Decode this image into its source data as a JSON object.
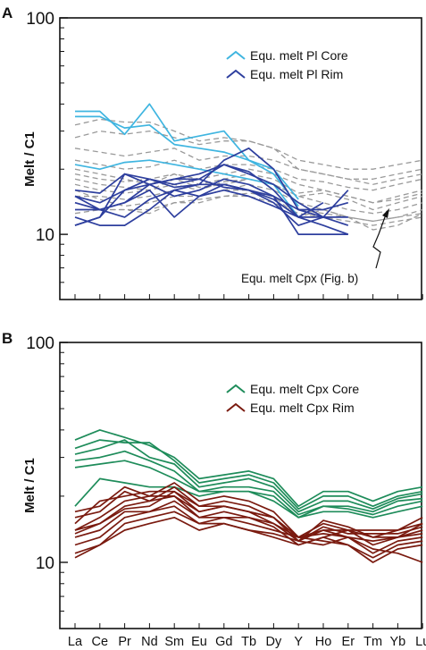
{
  "chart_data": [
    {
      "panel_label": "A",
      "type": "line",
      "ylabel": "Melt / C1",
      "yscale": "log",
      "ylim": [
        5,
        100
      ],
      "ytick_labels": [
        "10",
        "100"
      ],
      "yticks": [
        10,
        100
      ],
      "x_positions": [
        "La",
        "Ce",
        "Pr",
        "Nd",
        "Sm",
        "Eu",
        "Gd",
        "Tb",
        "Dy",
        "Y",
        "Ho",
        "Er",
        "Tm",
        "Yb",
        "Lu"
      ],
      "legend": [
        {
          "label": "Equ. melt Pl Core",
          "color": "#3fb5e0"
        },
        {
          "label": "Equ. melt Pl Rim",
          "color": "#2e3f9e"
        }
      ],
      "annotation": "Equ. melt Cpx (Fig. b)",
      "series": [
        {
          "group": "cpx",
          "color": "#9a9a9a",
          "dash": true,
          "values": [
            16,
            14.5,
            13.5,
            14,
            15,
            15,
            16,
            17,
            16,
            14,
            13,
            12,
            11.5,
            12,
            13
          ]
        },
        {
          "group": "cpx",
          "color": "#9a9a9a",
          "dash": true,
          "values": [
            18,
            17,
            16.5,
            16,
            18,
            16.5,
            17,
            18,
            17,
            15,
            14,
            13,
            12.5,
            13,
            14
          ]
        },
        {
          "group": "cpx",
          "color": "#9a9a9a",
          "dash": true,
          "values": [
            20,
            19,
            18,
            17,
            19,
            18,
            19,
            20,
            19,
            17,
            16,
            15,
            14,
            15,
            16
          ]
        },
        {
          "group": "cpx",
          "color": "#9a9a9a",
          "dash": true,
          "values": [
            22,
            21,
            20,
            20.5,
            22,
            20,
            21,
            21,
            20,
            18,
            17.5,
            16.5,
            16,
            17,
            18
          ]
        },
        {
          "group": "cpx",
          "color": "#9a9a9a",
          "dash": true,
          "values": [
            25,
            24,
            23,
            24,
            25,
            22,
            23,
            23,
            22,
            20,
            19,
            18,
            18,
            19,
            20
          ]
        },
        {
          "group": "cpx",
          "color": "#9a9a9a",
          "dash": true,
          "values": [
            28,
            30,
            29,
            30,
            28,
            26,
            27,
            27,
            25,
            22,
            21,
            20,
            20,
            21,
            22
          ]
        },
        {
          "group": "cpx",
          "color": "#9a9a9a",
          "dash": true,
          "values": [
            32,
            34,
            33,
            33,
            30,
            27,
            28,
            27,
            25,
            20,
            19,
            18,
            17,
            18,
            19
          ]
        },
        {
          "group": "cpx",
          "color": "#9a9a9a",
          "dash": true,
          "values": [
            14,
            13,
            13,
            13,
            14,
            14,
            15,
            15.5,
            15,
            13,
            12.5,
            12,
            11.5,
            12,
            12.5
          ]
        },
        {
          "group": "cpx",
          "color": "#9a9a9a",
          "dash": true,
          "values": [
            15,
            15,
            14.5,
            15,
            16,
            15,
            16,
            16,
            15,
            12,
            13,
            12,
            10.5,
            11,
            12.5
          ]
        },
        {
          "group": "cpx",
          "color": "#9a9a9a",
          "dash": true,
          "values": [
            17,
            16,
            15.5,
            16,
            17,
            16,
            17.5,
            18,
            17,
            15,
            15.5,
            14.5,
            13,
            14,
            15
          ]
        },
        {
          "group": "cpx",
          "color": "#9a9a9a",
          "dash": true,
          "values": [
            19,
            18,
            17.5,
            18,
            19,
            17,
            18,
            19,
            18,
            15.5,
            16,
            15,
            14,
            14.5,
            15.5
          ]
        },
        {
          "group": "cpx",
          "color": "#9a9a9a",
          "dash": true,
          "values": [
            12.5,
            13,
            13,
            12.5,
            14,
            14.5,
            15,
            15,
            14,
            12.5,
            12,
            11.5,
            11,
            11.5,
            12
          ]
        },
        {
          "group": "pl_core",
          "color": "#3fb5e0",
          "dash": false,
          "values": [
            37,
            37,
            29,
            40,
            27,
            null,
            30,
            22,
            19,
            13.5
          ]
        },
        {
          "group": "pl_core",
          "color": "#3fb5e0",
          "dash": false,
          "values": [
            35,
            35,
            31,
            32,
            26,
            25,
            24,
            22,
            20,
            14.5
          ]
        },
        {
          "group": "pl_core",
          "color": "#3fb5e0",
          "dash": false,
          "values": [
            21,
            20,
            21.5,
            22,
            21,
            20,
            19,
            18,
            17,
            12
          ]
        },
        {
          "group": "pl_rim",
          "color": "#2e3f9e",
          "dash": false,
          "values": [
            15,
            14,
            16,
            18,
            17,
            18,
            21,
            19.5,
            16,
            12,
            12,
            16
          ]
        },
        {
          "group": "pl_rim",
          "color": "#2e3f9e",
          "dash": false,
          "values": [
            16,
            15.5,
            19,
            18,
            16.5,
            17,
            17,
            16,
            15,
            13,
            13,
            14
          ]
        },
        {
          "group": "pl_rim",
          "color": "#2e3f9e",
          "dash": false,
          "values": [
            15,
            13,
            14,
            17,
            18,
            19,
            21,
            19,
            17,
            14,
            12,
            12
          ]
        },
        {
          "group": "pl_rim",
          "color": "#2e3f9e",
          "dash": false,
          "values": [
            14,
            13,
            12,
            14.5,
            16,
            15,
            17,
            16,
            14,
            11,
            12,
            11
          ]
        },
        {
          "group": "pl_rim",
          "color": "#2e3f9e",
          "dash": false,
          "values": [
            13,
            13,
            14,
            16,
            12,
            15,
            16,
            15,
            13.5,
            12,
            11,
            10
          ]
        },
        {
          "group": "pl_rim",
          "color": "#2e3f9e",
          "dash": false,
          "values": [
            12,
            11,
            11,
            13,
            16,
            17,
            22,
            25,
            20,
            13,
            12
          ]
        },
        {
          "group": "pl_rim",
          "color": "#2e3f9e",
          "dash": false,
          "values": [
            11,
            12,
            16,
            17,
            15,
            16,
            18,
            17,
            15,
            10,
            10,
            10
          ]
        },
        {
          "group": "pl_rim",
          "color": "#2e3f9e",
          "dash": false,
          "values": [
            11,
            12,
            19,
            17,
            18,
            18,
            16.5,
            16,
            14.5,
            12,
            14
          ]
        }
      ]
    },
    {
      "panel_label": "B",
      "type": "line",
      "ylabel": "Melt / C1",
      "yscale": "log",
      "ylim": [
        5,
        100
      ],
      "ytick_labels": [
        "10",
        "100"
      ],
      "yticks": [
        10,
        100
      ],
      "categories": [
        "La",
        "Ce",
        "Pr",
        "Nd",
        "Sm",
        "Eu",
        "Gd",
        "Tb",
        "Dy",
        "Y",
        "Ho",
        "Er",
        "Tm",
        "Yb",
        "Lu"
      ],
      "legend": [
        {
          "label": "Equ. melt Cpx Core",
          "color": "#1e8c5a"
        },
        {
          "label": "Equ. melt Cpx Rim",
          "color": "#7a1a0f"
        }
      ],
      "series": [
        {
          "group": "cpx_core",
          "color": "#1e8c5a",
          "values": [
            36,
            40,
            37,
            34,
            30,
            24,
            25,
            26,
            24,
            18,
            21,
            21,
            19,
            21,
            22
          ]
        },
        {
          "group": "cpx_core",
          "color": "#1e8c5a",
          "values": [
            33,
            36,
            35,
            35,
            29,
            23,
            24,
            25,
            23,
            17.5,
            20,
            20,
            18,
            20,
            21
          ]
        },
        {
          "group": "cpx_core",
          "color": "#1e8c5a",
          "values": [
            31,
            33,
            36,
            30,
            28,
            22,
            23,
            24,
            22,
            17,
            19,
            19,
            17.5,
            19.5,
            20.5
          ]
        },
        {
          "group": "cpx_core",
          "color": "#1e8c5a",
          "values": [
            29,
            30,
            32,
            29,
            26,
            21,
            22,
            22,
            21,
            16.5,
            18,
            18,
            17,
            19,
            19.5
          ]
        },
        {
          "group": "cpx_core",
          "color": "#1e8c5a",
          "values": [
            27,
            28,
            29,
            27,
            24,
            21,
            21,
            21,
            20,
            16,
            18,
            17.5,
            16.5,
            18,
            19
          ]
        },
        {
          "group": "cpx_core",
          "color": "#1e8c5a",
          "values": [
            18,
            24,
            23,
            22,
            22,
            20,
            21,
            21,
            19,
            16,
            17,
            17,
            16,
            17,
            18
          ]
        },
        {
          "group": "cpx_rim",
          "color": "#7a1a0f",
          "values": [
            17,
            18,
            22,
            20,
            23,
            19,
            20,
            19,
            17,
            13,
            15,
            14,
            14,
            14,
            15
          ]
        },
        {
          "group": "cpx_rim",
          "color": "#7a1a0f",
          "values": [
            16,
            17,
            21,
            19,
            22,
            18,
            19,
            18,
            16,
            12.5,
            14.5,
            13.5,
            13.5,
            13.5,
            14.5
          ]
        },
        {
          "group": "cpx_rim",
          "color": "#7a1a0f",
          "values": [
            15,
            19,
            20,
            21,
            21,
            18,
            18,
            17,
            16,
            13,
            14,
            13,
            12.5,
            13,
            14
          ]
        },
        {
          "group": "cpx_rim",
          "color": "#7a1a0f",
          "values": [
            14,
            16,
            19,
            20,
            20,
            17,
            18,
            17,
            15,
            12.5,
            14,
            14,
            12,
            13,
            13.5
          ]
        },
        {
          "group": "cpx_rim",
          "color": "#7a1a0f",
          "values": [
            14,
            15,
            18,
            19,
            20,
            16,
            17,
            16,
            15,
            13,
            13.5,
            13,
            11,
            12.5,
            13
          ]
        },
        {
          "group": "cpx_rim",
          "color": "#7a1a0f",
          "values": [
            13,
            14,
            17,
            17,
            19,
            16,
            16,
            16,
            14.5,
            12,
            13,
            12,
            10.5,
            12,
            12.5
          ]
        },
        {
          "group": "cpx_rim",
          "color": "#7a1a0f",
          "values": [
            12,
            13,
            16,
            17,
            18,
            15,
            16,
            15,
            14,
            13,
            12.5,
            12,
            10,
            11.5,
            12
          ]
        },
        {
          "group": "cpx_rim",
          "color": "#7a1a0f",
          "values": [
            11,
            12,
            15,
            16,
            17,
            15,
            15,
            14,
            13.5,
            12.5,
            12,
            13,
            11.5,
            11,
            10
          ]
        },
        {
          "group": "cpx_rim",
          "color": "#7a1a0f",
          "values": [
            10.5,
            12,
            14,
            15,
            16,
            14,
            15,
            14,
            13,
            12,
            13,
            14,
            13,
            13,
            15
          ]
        },
        {
          "group": "cpx_rim",
          "color": "#7a1a0f",
          "values": [
            13.5,
            15,
            17.5,
            18,
            21,
            17,
            18,
            17,
            16,
            12.5,
            15.5,
            14.5,
            13,
            14,
            16
          ]
        }
      ]
    }
  ]
}
